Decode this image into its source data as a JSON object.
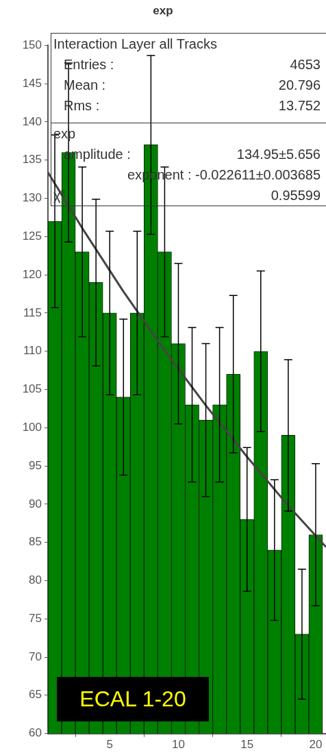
{
  "chart_data": {
    "type": "histogram",
    "title": "exp",
    "bins": [
      0.5,
      1.5,
      2.5,
      3.5,
      4.5,
      5.5,
      6.5,
      7.5,
      8.5,
      9.5,
      10.5,
      11.5,
      12.5,
      13.5,
      14.5,
      15.5,
      16.5,
      17.5,
      18.5,
      19.5,
      20.5
    ],
    "series": [
      {
        "type": "histogram",
        "color": "#008000",
        "values": [
          127,
          136,
          123,
          119,
          115,
          104,
          115,
          137,
          123,
          111,
          103,
          101,
          103,
          107,
          88,
          110,
          84,
          99,
          73,
          86
        ],
        "errors": [
          11.3,
          11.7,
          11.1,
          10.9,
          10.7,
          10.2,
          10.7,
          11.7,
          11.1,
          10.5,
          10.1,
          10.0,
          10.1,
          10.3,
          9.4,
          10.5,
          9.2,
          9.9,
          8.5,
          9.3
        ]
      },
      {
        "type": "line",
        "color": "#444444",
        "x": [
          0.5,
          3,
          6,
          9,
          12,
          15,
          18,
          20.75
        ],
        "values": [
          133.4,
          126.1,
          117.8,
          110.1,
          102.9,
          96.2,
          89.8,
          84.4
        ]
      }
    ],
    "xlim": [
      0.5,
      20.75
    ],
    "xticks": [
      5,
      10,
      15,
      20
    ],
    "ylim": [
      60,
      150
    ],
    "yticks": [
      60,
      65,
      70,
      75,
      80,
      85,
      90,
      95,
      100,
      105,
      110,
      115,
      120,
      125,
      130,
      135,
      140,
      145,
      150
    ],
    "annotations": [
      "Interaction Layer all Tracks",
      "Entries :",
      "4653",
      "Mean :",
      "20.796",
      "Rms :",
      "13.752",
      "exp",
      "amplitude :",
      "134.95±5.656",
      "exponent : -0.022611±0.003685",
      "χ²",
      "0.95599",
      "ECAL 1-20"
    ]
  }
}
